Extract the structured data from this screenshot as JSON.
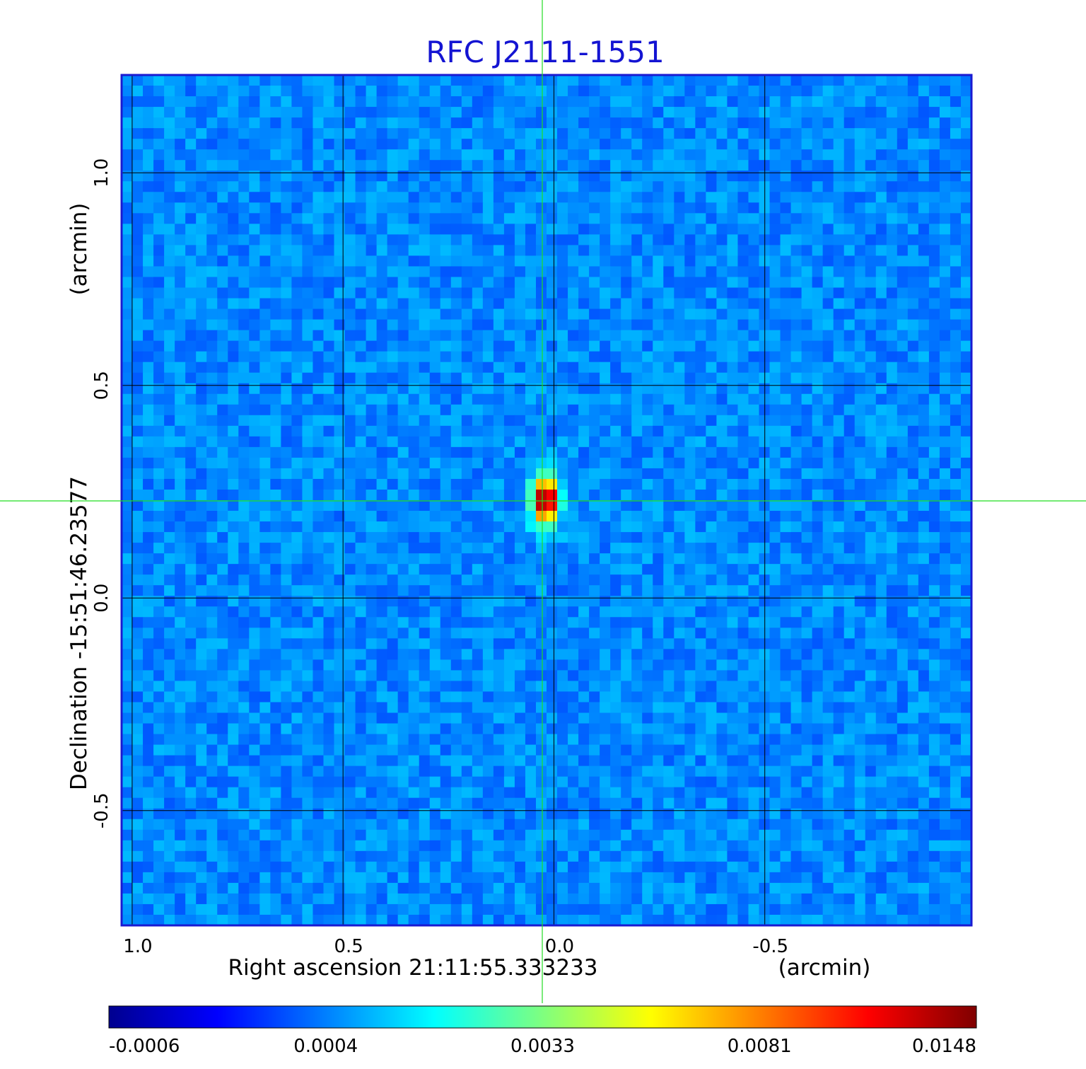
{
  "chart_data": {
    "type": "heatmap",
    "title": "RFC J2111-1551",
    "xlabel": "Right ascension  21:11:55.333233",
    "xunit": "(arcmin)",
    "ylabel": "Declination  -15:51:46.23577",
    "yunit": "(arcmin)",
    "xlim": [
      1.025,
      -0.99
    ],
    "ylim": [
      -0.77,
      1.23
    ],
    "xticks": [
      1.0,
      0.5,
      0.0,
      -0.5
    ],
    "xtick_labels": [
      "1.0",
      "0.5",
      "0.0",
      "-0.5"
    ],
    "yticks": [
      -0.5,
      0.0,
      0.5,
      1.0
    ],
    "ytick_labels": [
      "-0.5",
      "0.0",
      "0.5",
      "1.0"
    ],
    "grid": true,
    "crosshair": {
      "x": 0.025,
      "y": 0.23,
      "color": "#00cc00"
    },
    "source": {
      "x": 0.02,
      "y": 0.23,
      "peak": 0.0148
    },
    "colormap": "jet",
    "colorbar": {
      "ticks": [
        "-0.0006",
        "0.0004",
        "0.0033",
        "0.0081",
        "0.0148"
      ],
      "min": -0.0006,
      "max": 0.0148
    },
    "frame_color": "#1a1ad2",
    "grid_color": "#000000"
  }
}
